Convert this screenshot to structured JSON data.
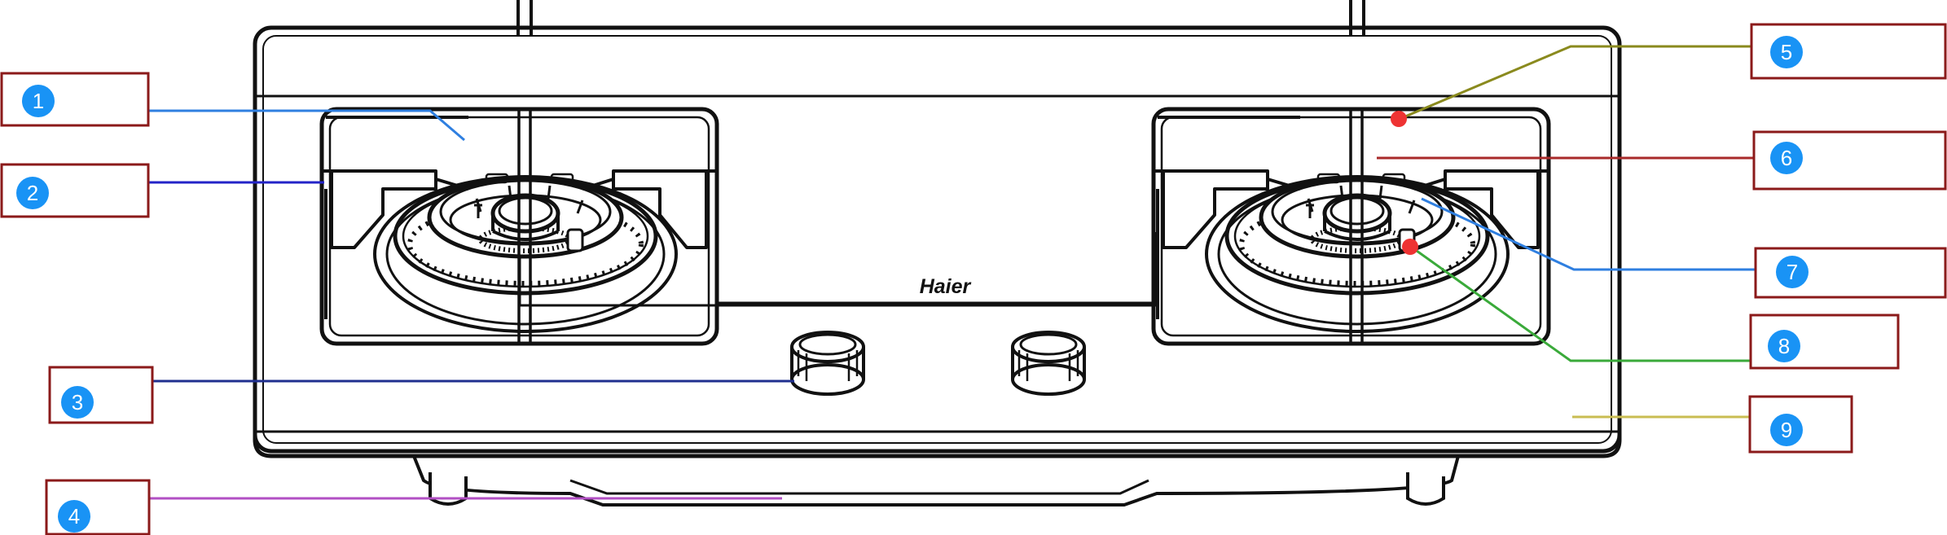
{
  "brand": "Haier",
  "colors": {
    "box_border": "#8b1a1a",
    "badge_fill": "#1993f5",
    "marker": "#ee3333",
    "drawing": "#111111"
  },
  "callouts": [
    {
      "number": "1",
      "leader_color": "#2f7fe0"
    },
    {
      "number": "2",
      "leader_color": "#2424c8"
    },
    {
      "number": "3",
      "leader_color": "#1f2f8f"
    },
    {
      "number": "4",
      "leader_color": "#b24fc4"
    },
    {
      "number": "5",
      "leader_color": "#8a8a1e"
    },
    {
      "number": "6",
      "leader_color": "#a82a2a"
    },
    {
      "number": "7",
      "leader_color": "#2f7fe0"
    },
    {
      "number": "8",
      "leader_color": "#3aaa3a"
    },
    {
      "number": "9",
      "leader_color": "#c9bd52"
    }
  ]
}
